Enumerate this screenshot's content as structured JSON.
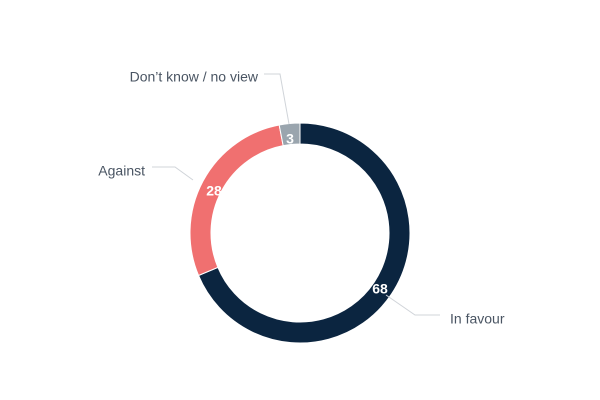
{
  "chart_data": {
    "type": "pie",
    "variant": "donut",
    "categories": [
      "In favour",
      "Against",
      "Don’t know / no view"
    ],
    "values": [
      68,
      28,
      3
    ],
    "colors": [
      "#0b2540",
      "#f07070",
      "#9aa5ae"
    ],
    "legend": "none (labels on chart)",
    "start": "top, clockwise"
  }
}
